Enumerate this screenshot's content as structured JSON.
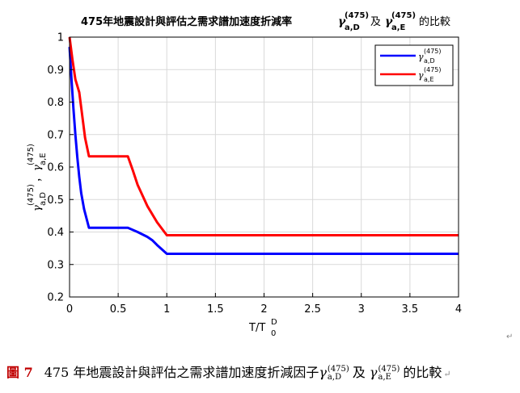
{
  "chart_data": {
    "type": "line",
    "title": "475年地震設計與評估之需求譜加速度折減率",
    "title_symbols": [
      "γ",
      "(475)",
      "a,D",
      "及",
      "γ",
      "(475)",
      "a,E",
      "的比較"
    ],
    "xlabel": {
      "main": "T/T",
      "sup": "D",
      "sub": "0"
    },
    "ylabel": {
      "g1": "γ",
      "sup1": "(475)",
      "sub1": "a,D",
      "sep": "，",
      "g2": "γ",
      "sup2": "(475)",
      "sub2": "a,E"
    },
    "xlim": [
      0,
      4
    ],
    "ylim": [
      0.2,
      1
    ],
    "xticks": [
      "0",
      "0.5",
      "1",
      "1.5",
      "2",
      "2.5",
      "3",
      "3.5",
      "4"
    ],
    "yticks": [
      "0.2",
      "0.3",
      "0.4",
      "0.5",
      "0.6",
      "0.7",
      "0.8",
      "0.9",
      "1"
    ],
    "grid": true,
    "legend_position": "top-right",
    "series": [
      {
        "name": "γa,D(475)",
        "legend": {
          "g": "γ",
          "sup": "(475)",
          "sub": "a,D"
        },
        "color": "#0000ff",
        "x": [
          0,
          0.02,
          0.04,
          0.06,
          0.08,
          0.1,
          0.12,
          0.15,
          0.2,
          0.3,
          0.4,
          0.5,
          0.6,
          0.7,
          0.8,
          0.85,
          0.9,
          1.0,
          1.5,
          2,
          2.5,
          3,
          3.5,
          4
        ],
        "values": [
          0.97,
          0.87,
          0.78,
          0.7,
          0.63,
          0.57,
          0.52,
          0.47,
          0.413,
          0.413,
          0.413,
          0.413,
          0.413,
          0.4,
          0.385,
          0.375,
          0.36,
          0.333,
          0.333,
          0.333,
          0.333,
          0.333,
          0.333,
          0.333
        ]
      },
      {
        "name": "γa,E(475)",
        "legend": {
          "g": "γ",
          "sup": "(475)",
          "sub": "a,E"
        },
        "color": "#ff0000",
        "x": [
          0,
          0.03,
          0.06,
          0.1,
          0.13,
          0.16,
          0.2,
          0.3,
          0.4,
          0.5,
          0.6,
          0.65,
          0.7,
          0.8,
          0.9,
          1.0,
          1.5,
          2,
          2.5,
          3,
          3.5,
          4
        ],
        "values": [
          1.0,
          0.93,
          0.87,
          0.83,
          0.76,
          0.69,
          0.633,
          0.633,
          0.633,
          0.633,
          0.633,
          0.59,
          0.545,
          0.48,
          0.43,
          0.39,
          0.39,
          0.39,
          0.39,
          0.39,
          0.39,
          0.39
        ]
      }
    ]
  },
  "caption": {
    "fig_label": "圖 7",
    "text": "475 年地震設計與評估之需求譜加速度折減因子",
    "g1": "γ",
    "sup1": "(475)",
    "sub1": "a,D",
    "mid": "及",
    "g2": "γ",
    "sup2": "(475)",
    "sub2": "a,E",
    "end": "的比較",
    "return_mark": "↵"
  },
  "return_mark_chart": "↵"
}
